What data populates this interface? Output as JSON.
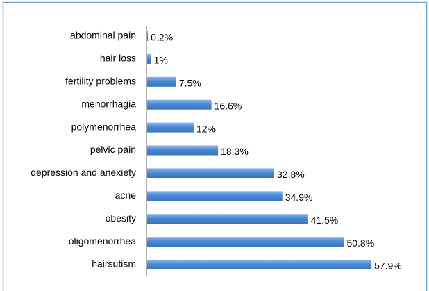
{
  "chart_data": {
    "type": "bar",
    "orientation": "horizontal",
    "categories": [
      "abdominal pain",
      "hair loss",
      "fertility problems",
      "menorrhagia",
      "polymenorrhea",
      "pelvic pain",
      "depression and anexiety",
      "acne",
      "obesity",
      "oligomenorrhea",
      "hairsutism"
    ],
    "values": [
      0.2,
      1,
      7.5,
      16.6,
      12,
      18.3,
      32.8,
      34.9,
      41.5,
      50.8,
      57.9
    ],
    "value_labels": [
      "0.2%",
      "1%",
      "7.5%",
      "16.6%",
      "12%",
      "18.3%",
      "32.8%",
      "34.9%",
      "41.5%",
      "50.8%",
      "57.9%"
    ],
    "color": "#4a8ad4"
  }
}
